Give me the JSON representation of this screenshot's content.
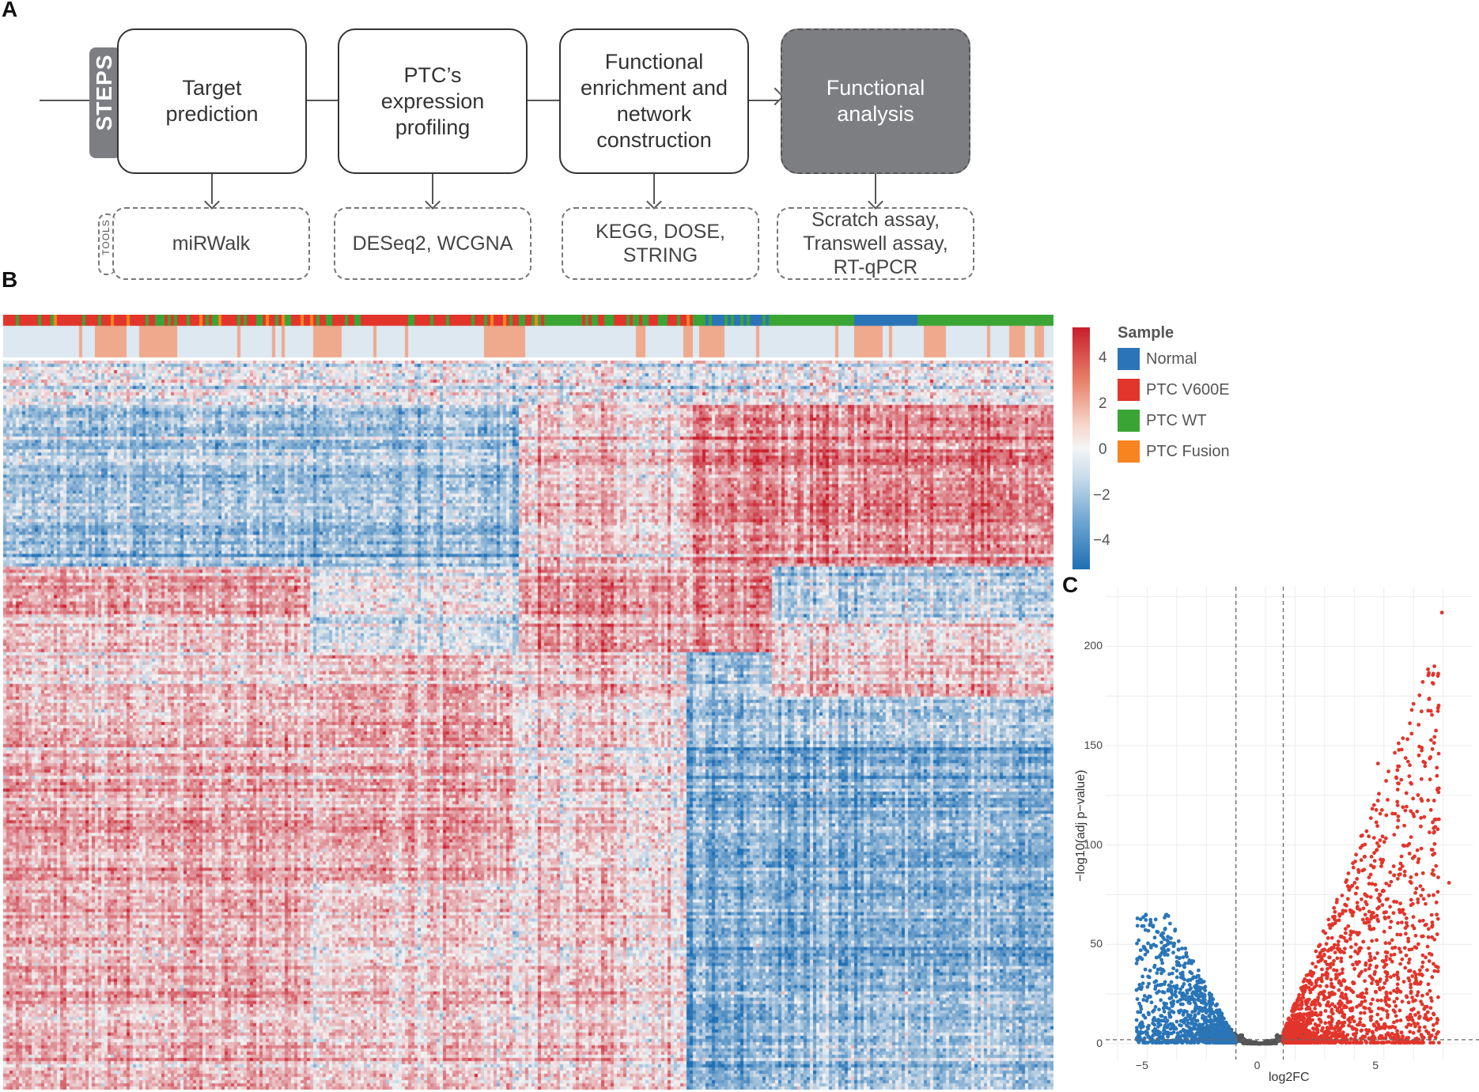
{
  "panels": {
    "a": "A",
    "b": "B",
    "c": "C"
  },
  "steps_tab": "STEPS",
  "tools_tab": "TOOLS",
  "steps": [
    {
      "label": "Target\nprediction"
    },
    {
      "label": "PTC’s\nexpression\nprofiling"
    },
    {
      "label": "Functional\nenrichment and\nnetwork\nconstruction"
    },
    {
      "label": "Functional\nanalysis"
    }
  ],
  "tools": [
    {
      "label": "miRWalk"
    },
    {
      "label": "DESeq2, WCGNA"
    },
    {
      "label": "KEGG, DOSE,\nSTRING"
    },
    {
      "label": "Scratch assay,\nTranswell assay,\nRT-qPCR"
    }
  ],
  "heatmap": {
    "legend_title": "Sample",
    "legend": [
      {
        "label": "Normal",
        "color": "#2b74b8"
      },
      {
        "label": "PTC V600E",
        "color": "#e2352b"
      },
      {
        "label": "PTC WT",
        "color": "#3aa535"
      },
      {
        "label": "PTC Fusion",
        "color": "#f7841f"
      }
    ],
    "colorbar_ticks": [
      "4",
      "2",
      "0",
      "−2",
      "−4"
    ],
    "high_color": "#c81e2c",
    "mid_color": "#f4f4f4",
    "low_color": "#1f6fb4"
  },
  "chart_data": {
    "type": "scatter",
    "title": "",
    "xlabel": "log2FC",
    "ylabel": "−log10(adj p−value)",
    "xlim": [
      -6.5,
      9.0
    ],
    "ylim": [
      -8,
      230
    ],
    "x_ticks": [
      "−5",
      "0",
      "5"
    ],
    "x_tick_values": [
      -5,
      0,
      5
    ],
    "y_ticks": [
      "0",
      "50",
      "100",
      "150",
      "200"
    ],
    "y_tick_values": [
      0,
      50,
      100,
      150,
      200
    ],
    "thresholds": {
      "log2fc": [
        -1,
        1
      ],
      "pvalue_line": 2
    },
    "series": [
      {
        "name": "down",
        "color": "#2a75b7",
        "x_range": [
          -5.3,
          -1.0
        ],
        "y_max": 65
      },
      {
        "name": "up",
        "color": "#e2352b",
        "x_range": [
          1.0,
          8.1
        ],
        "y_max": 218
      },
      {
        "name": "not significant",
        "color": "#555555",
        "x_range": [
          -2.5,
          2.0
        ],
        "y_max": 6
      }
    ],
    "highlight_points": [
      {
        "x": 7.7,
        "y": 217
      },
      {
        "x": 5.0,
        "y": 141
      },
      {
        "x": 7.2,
        "y": 133
      },
      {
        "x": 8.0,
        "y": 81
      },
      {
        "x": -5.2,
        "y": 27
      },
      {
        "x": -4.8,
        "y": 65
      }
    ]
  }
}
